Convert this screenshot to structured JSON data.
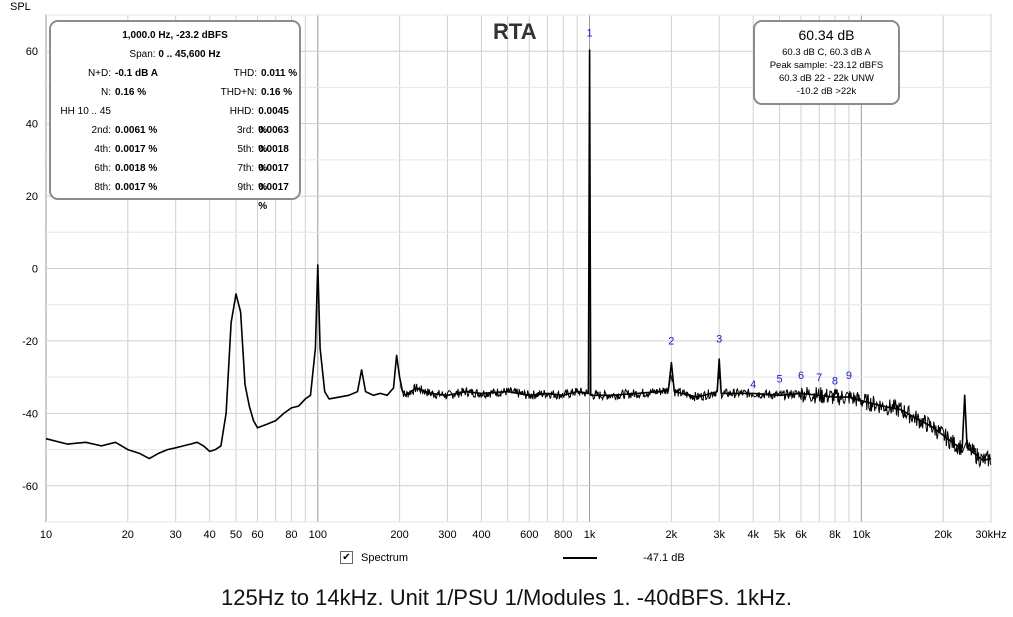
{
  "y_axis_label": "SPL",
  "title": "RTA",
  "caption": "125Hz to 14kHz. Unit 1/PSU 1/Modules 1. -40dBFS. 1kHz.",
  "stats": {
    "header1": "1,000.0 Hz, -23.2 dBFS",
    "span_label": "Span:",
    "span_value": "0 .. 45,600 Hz",
    "rows": [
      {
        "k1": "N+D:",
        "v1": "-0.1 dB A",
        "k2": "THD:",
        "v2": "0.011 %"
      },
      {
        "k1": "N:",
        "v1": "0.16 %",
        "k2": "THD+N:",
        "v2": "0.16 %"
      },
      {
        "k1": "HH 10 .. 45",
        "v1": "",
        "k2": "HHD:",
        "v2": "0.0045 %"
      },
      {
        "k1": "2nd:",
        "v1": "0.0061 %",
        "k2": "3rd:",
        "v2": "0.0063 %"
      },
      {
        "k1": "4th:",
        "v1": "0.0017 %",
        "k2": "5th:",
        "v2": "0.0018 %"
      },
      {
        "k1": "6th:",
        "v1": "0.0018 %",
        "k2": "7th:",
        "v2": "0.0017 %"
      },
      {
        "k1": "8th:",
        "v1": "0.0017 %",
        "k2": "9th:",
        "v2": "0.0017 %"
      }
    ]
  },
  "level_box": {
    "big": "60.34 dB",
    "line1": "60.3 dB C, 60.3 dB A",
    "line2": "Peak sample: -23.12 dBFS",
    "line3": "60.3 dB 22 - 22k UNW",
    "line4": "-10.2 dB >22k"
  },
  "legend": {
    "checkbox": "checked",
    "series_label": "Spectrum",
    "value": "-47.1 dB"
  },
  "chart_data": {
    "type": "line",
    "xscale": "log",
    "xlim": [
      10,
      30000
    ],
    "ylim": [
      -70,
      70
    ],
    "grid": true,
    "x_ticks": [
      {
        "v": 10,
        "label": "10"
      },
      {
        "v": 20,
        "label": "20"
      },
      {
        "v": 30,
        "label": "30"
      },
      {
        "v": 40,
        "label": "40"
      },
      {
        "v": 50,
        "label": "50"
      },
      {
        "v": 60,
        "label": "60"
      },
      {
        "v": 80,
        "label": "80"
      },
      {
        "v": 100,
        "label": "100"
      },
      {
        "v": 200,
        "label": "200"
      },
      {
        "v": 300,
        "label": "300"
      },
      {
        "v": 400,
        "label": "400"
      },
      {
        "v": 600,
        "label": "600"
      },
      {
        "v": 800,
        "label": "800"
      },
      {
        "v": 1000,
        "label": "1k"
      },
      {
        "v": 2000,
        "label": "2k"
      },
      {
        "v": 3000,
        "label": "3k"
      },
      {
        "v": 4000,
        "label": "4k"
      },
      {
        "v": 5000,
        "label": "5k"
      },
      {
        "v": 6000,
        "label": "6k"
      },
      {
        "v": 8000,
        "label": "8k"
      },
      {
        "v": 10000,
        "label": "10k"
      },
      {
        "v": 20000,
        "label": "20k"
      },
      {
        "v": 30000,
        "label": "30kHz"
      }
    ],
    "y_ticks": [
      60,
      40,
      20,
      0,
      -20,
      -40,
      -60
    ],
    "harmonic_markers": [
      {
        "label": "1",
        "x": 1000,
        "y": 64
      },
      {
        "label": "2",
        "x": 2000,
        "y": -21
      },
      {
        "label": "3",
        "x": 3000,
        "y": -20.5
      },
      {
        "label": "4",
        "x": 4000,
        "y": -33
      },
      {
        "label": "5",
        "x": 5000,
        "y": -31.5
      },
      {
        "label": "6",
        "x": 6000,
        "y": -30.5
      },
      {
        "label": "7",
        "x": 7000,
        "y": -31
      },
      {
        "label": "8",
        "x": 8000,
        "y": -32
      },
      {
        "label": "9",
        "x": 9000,
        "y": -30.5
      }
    ],
    "series": [
      {
        "name": "Spectrum",
        "color": "#000000",
        "x": [
          10,
          12,
          14,
          16,
          18,
          20,
          22,
          24,
          26,
          28,
          30,
          32,
          34,
          36,
          38,
          40,
          42,
          44,
          46,
          48,
          50,
          52,
          54,
          56,
          58,
          60,
          65,
          70,
          75,
          80,
          85,
          90,
          94,
          98,
          100,
          102,
          106,
          110,
          120,
          130,
          140,
          145,
          150,
          160,
          170,
          180,
          190,
          195,
          200,
          205,
          210,
          230,
          260,
          300,
          350,
          400,
          500,
          600,
          700,
          800,
          900,
          990,
          1000,
          1010,
          1200,
          1500,
          1800,
          1950,
          2000,
          2050,
          2500,
          2950,
          3000,
          3050,
          4000,
          5000,
          6000,
          7000,
          8000,
          9000,
          10000,
          12000,
          14000,
          16000,
          18000,
          20000,
          22000,
          23500,
          24000,
          24500,
          26000,
          28000,
          30000
        ],
        "y": [
          -47,
          -48.5,
          -48,
          -49,
          -48,
          -50,
          -51,
          -52.5,
          -51,
          -50,
          -49.5,
          -49,
          -48.5,
          -48,
          -49,
          -50.5,
          -50,
          -49,
          -40,
          -15,
          -7,
          -12,
          -32,
          -38,
          -42,
          -44,
          -43,
          -42,
          -40,
          -38.5,
          -38,
          -36,
          -35,
          -22,
          1,
          -22,
          -34,
          -36,
          -35.5,
          -35,
          -34,
          -28,
          -34,
          -35,
          -34.5,
          -35,
          -33,
          -24,
          -30,
          -34,
          -35,
          -33,
          -34.5,
          -35,
          -34,
          -34.5,
          -34,
          -35,
          -34.5,
          -35,
          -34,
          -34.5,
          60.3,
          -35,
          -35,
          -34.5,
          -34,
          -33.5,
          -26,
          -34,
          -35.5,
          -34,
          -25,
          -34.5,
          -34.5,
          -35,
          -34.5,
          -35,
          -35.5,
          -35.5,
          -36.5,
          -38,
          -39,
          -41.5,
          -43.5,
          -46,
          -48.5,
          -49.5,
          -35,
          -49.5,
          -51,
          -53,
          -52.5
        ]
      }
    ]
  }
}
